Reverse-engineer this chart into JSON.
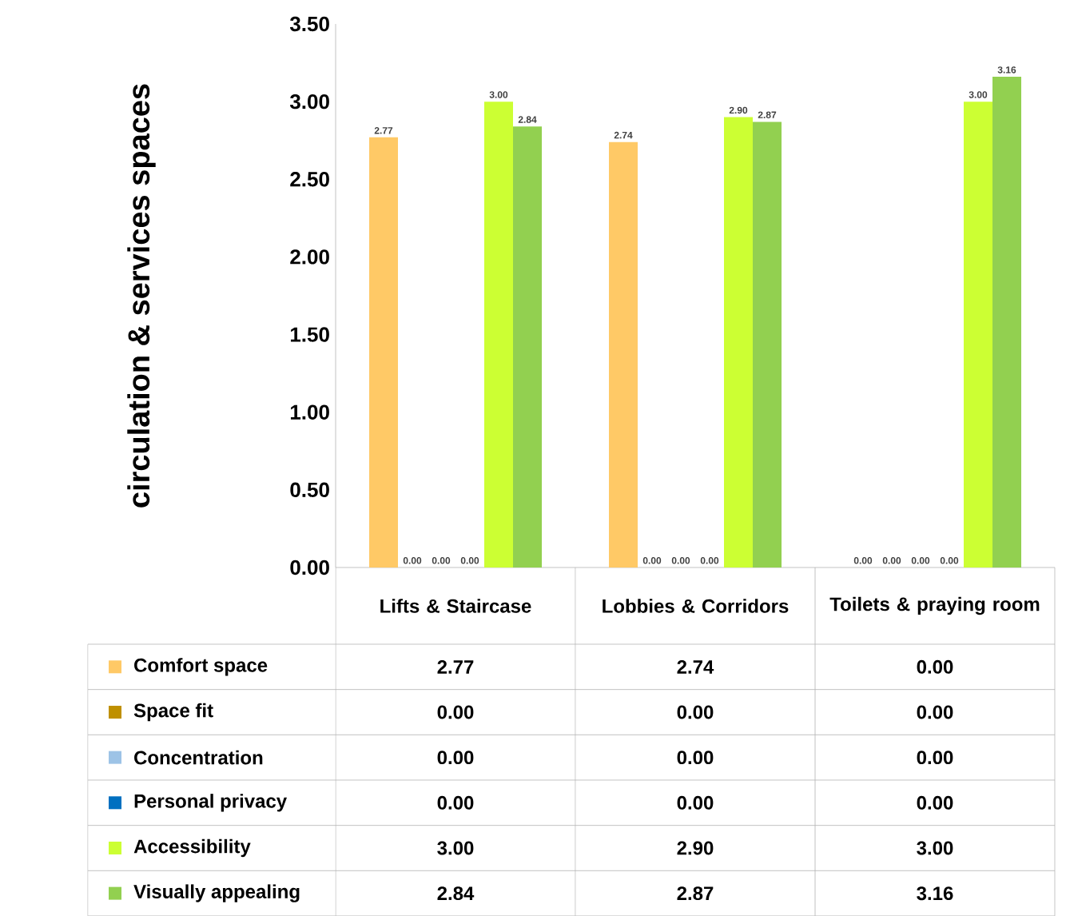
{
  "chart_data": {
    "type": "bar",
    "ylabel": "circulation & services spaces",
    "categories": [
      "Lifts & Staircase",
      "Lobbies & Corridors",
      "Toilets & praying room"
    ],
    "series": [
      {
        "name": "Comfort space",
        "color": "#ffc966",
        "values": [
          2.77,
          2.74,
          0.0
        ],
        "value_labels": [
          "2.77",
          "2.74",
          "0.00"
        ]
      },
      {
        "name": "Space fit",
        "color": "#bf9000",
        "values": [
          0.0,
          0.0,
          0.0
        ],
        "value_labels": [
          "0.00",
          "0.00",
          "0.00"
        ]
      },
      {
        "name": "Concentration",
        "color": "#9dc3e6",
        "values": [
          0.0,
          0.0,
          0.0
        ],
        "value_labels": [
          "0.00",
          "0.00",
          "0.00"
        ]
      },
      {
        "name": "Personal privacy",
        "color": "#0070c0",
        "values": [
          0.0,
          0.0,
          0.0
        ],
        "value_labels": [
          "0.00",
          "0.00",
          "0.00"
        ]
      },
      {
        "name": "Accessibility",
        "color": "#ccff33",
        "values": [
          3.0,
          2.9,
          3.0
        ],
        "value_labels": [
          "3.00",
          "2.90",
          "3.00"
        ]
      },
      {
        "name": "Visually appealing",
        "color": "#92d050",
        "values": [
          2.84,
          2.87,
          3.16
        ],
        "value_labels": [
          "2.84",
          "2.87",
          "3.16"
        ]
      }
    ],
    "ylim": [
      0,
      3.5
    ],
    "yticks": [
      {
        "value": 0,
        "label": "0.00"
      },
      {
        "value": 0.5,
        "label": "0.50"
      },
      {
        "value": 1,
        "label": "1.00"
      },
      {
        "value": 1.5,
        "label": "1.50"
      },
      {
        "value": 2,
        "label": "2.00"
      },
      {
        "value": 2.5,
        "label": "2.50"
      },
      {
        "value": 3,
        "label": "3.00"
      },
      {
        "value": 3.5,
        "label": "3.50"
      }
    ],
    "legend": "bottom",
    "grid": false
  }
}
